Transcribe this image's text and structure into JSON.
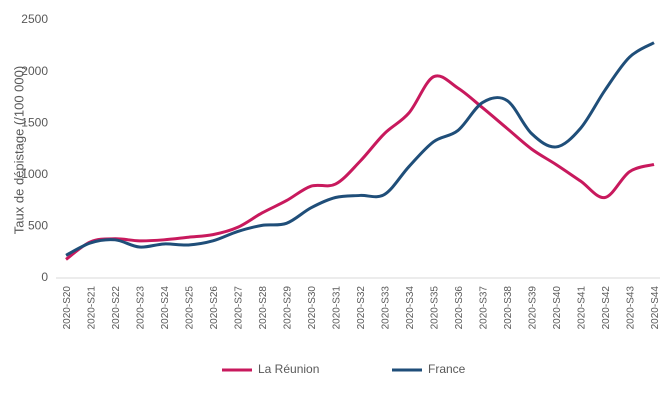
{
  "chart_data": {
    "type": "line",
    "ylabel": "Taux de dépistage (/100 000)",
    "categories": [
      "2020-S20",
      "2020-S21",
      "2020-S22",
      "2020-S23",
      "2020-S24",
      "2020-S25",
      "2020-S26",
      "2020-S27",
      "2020-S28",
      "2020-S29",
      "2020-S30",
      "2020-S31",
      "2020-S32",
      "2020-S33",
      "2020-S34",
      "2020-S35",
      "2020-S36",
      "2020-S37",
      "2020-S38",
      "2020-S39",
      "2020-S40",
      "2020-S41",
      "2020-S42",
      "2020-S43",
      "2020-S44"
    ],
    "series": [
      {
        "name": "La Réunion",
        "color": "#c8195d",
        "values": [
          180,
          350,
          380,
          360,
          370,
          395,
          420,
          490,
          630,
          750,
          890,
          910,
          1130,
          1400,
          1600,
          1950,
          1840,
          1650,
          1450,
          1250,
          1100,
          940,
          780,
          1030,
          1100
        ]
      },
      {
        "name": "France",
        "color": "#1f4e79",
        "values": [
          220,
          340,
          370,
          300,
          330,
          320,
          360,
          450,
          510,
          530,
          680,
          780,
          800,
          810,
          1080,
          1320,
          1430,
          1700,
          1720,
          1400,
          1270,
          1450,
          1820,
          2140,
          2280
        ]
      }
    ],
    "ylim": [
      0,
      2500
    ],
    "yticks": [
      0,
      500,
      1000,
      1500,
      2000,
      2500
    ],
    "grid": false,
    "legend": "bottom"
  }
}
